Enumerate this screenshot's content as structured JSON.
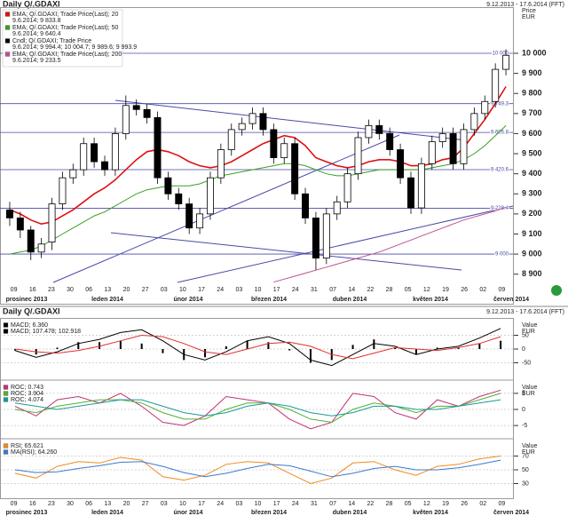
{
  "header": {
    "title": "Daily Q/.GDAXI",
    "range": "9.12.2013 - 17.6.2014 (FFT)"
  },
  "chart_data": [
    {
      "type": "candlestick",
      "axis_label": "Price",
      "unit": "EUR",
      "ylim": [
        8850,
        10230
      ],
      "yticks": [
        {
          "value": 8900,
          "label": "8 900"
        },
        {
          "value": 9000,
          "label": "9 000"
        },
        {
          "value": 9100,
          "label": "9 100"
        },
        {
          "value": 9200,
          "label": "9 200"
        },
        {
          "value": 9300,
          "label": "9 300"
        },
        {
          "value": 9400,
          "label": "9 400"
        },
        {
          "value": 9500,
          "label": "9 500"
        },
        {
          "value": 9600,
          "label": "9 600"
        },
        {
          "value": 9700,
          "label": "9 700"
        },
        {
          "value": 9800,
          "label": "9 800"
        },
        {
          "value": 9900,
          "label": "9 900"
        },
        {
          "value": 10000,
          "label": "10 000"
        }
      ],
      "levels": [
        {
          "value": 10000,
          "label": "10 000"
        },
        {
          "value": 9749.3,
          "label": "9 749.3"
        },
        {
          "value": 9605.8,
          "label": "9 605.8"
        },
        {
          "value": 9420.6,
          "label": "9 420.6"
        },
        {
          "value": 9228.4,
          "label": "9 228.4"
        },
        {
          "value": 9000,
          "label": "9 000"
        }
      ],
      "level_color": "#4a4aa8",
      "x_labels": [
        "09",
        "16",
        "23",
        "30",
        "06",
        "13",
        "20",
        "27",
        "03",
        "10",
        "17",
        "24",
        "03",
        "10",
        "17",
        "24",
        "31",
        "07",
        "14",
        "22",
        "28",
        "05",
        "12",
        "19",
        "26",
        "02",
        "09"
      ],
      "months": [
        "prosinec 2013",
        "leden 2014",
        "únor 2014",
        "březen 2014",
        "duben 2014",
        "květen 2014",
        "červen 2014"
      ],
      "candles": {
        "name": "Cndl; Q/.GDAXI; Trade Price",
        "detail": "9.6.2014; 9 994.4; 10 004.7; 9 989.6; 9 993.9",
        "color": "#000000",
        "open": [
          9220,
          9180,
          9120,
          9010,
          9060,
          9250,
          9380,
          9420,
          9550,
          9460,
          9420,
          9600,
          9740,
          9720,
          9680,
          9380,
          9300,
          9250,
          9130,
          9200,
          9380,
          9520,
          9620,
          9650,
          9700,
          9620,
          9480,
          9550,
          9300,
          9180,
          8980,
          9200,
          9260,
          9400,
          9580,
          9640,
          9600,
          9520,
          9380,
          9230,
          9450,
          9560,
          9600,
          9450,
          9620,
          9700,
          9760,
          9920
        ],
        "high": [
          9260,
          9210,
          9140,
          9080,
          9280,
          9410,
          9450,
          9580,
          9580,
          9490,
          9630,
          9790,
          9770,
          9750,
          9710,
          9410,
          9330,
          9280,
          9230,
          9410,
          9550,
          9650,
          9680,
          9730,
          9730,
          9650,
          9580,
          9580,
          9330,
          9210,
          9230,
          9290,
          9430,
          9610,
          9670,
          9670,
          9630,
          9550,
          9410,
          9480,
          9590,
          9630,
          9630,
          9650,
          9730,
          9790,
          9950,
          10020
        ],
        "low": [
          9140,
          9080,
          8970,
          8980,
          9020,
          9220,
          9350,
          9390,
          9430,
          9390,
          9390,
          9570,
          9690,
          9650,
          9350,
          9270,
          9220,
          9100,
          9100,
          9170,
          9350,
          9490,
          9590,
          9620,
          9590,
          9450,
          9450,
          9270,
          9150,
          8920,
          8950,
          9170,
          9230,
          9370,
          9550,
          9570,
          9490,
          9350,
          9200,
          9200,
          9420,
          9530,
          9420,
          9420,
          9590,
          9670,
          9730,
          9890
        ],
        "close": [
          9180,
          9120,
          9010,
          9050,
          9250,
          9380,
          9420,
          9550,
          9460,
          9420,
          9600,
          9740,
          9720,
          9680,
          9380,
          9300,
          9250,
          9130,
          9200,
          9380,
          9520,
          9620,
          9650,
          9700,
          9620,
          9480,
          9550,
          9300,
          9180,
          8980,
          9200,
          9260,
          9400,
          9580,
          9640,
          9600,
          9520,
          9380,
          9230,
          9450,
          9560,
          9600,
          9450,
          9620,
          9700,
          9760,
          9920,
          9990
        ]
      },
      "series": [
        {
          "name": "EMA; Q/.GDAXI; Trade Price(Last); 20",
          "detail": "9.6.2014; 9 833.8",
          "color": "#e01010",
          "values": [
            9220,
            9200,
            9170,
            9150,
            9160,
            9190,
            9220,
            9260,
            9300,
            9330,
            9370,
            9420,
            9470,
            9510,
            9520,
            9510,
            9490,
            9460,
            9440,
            9430,
            9440,
            9460,
            9490,
            9520,
            9550,
            9570,
            9590,
            9580,
            9540,
            9480,
            9460,
            9440,
            9430,
            9440,
            9460,
            9470,
            9470,
            9460,
            9440,
            9440,
            9450,
            9470,
            9480,
            9530,
            9600,
            9670,
            9750,
            9834
          ]
        },
        {
          "name": "EMA; Q/.GDAXI; Trade Price(Last); 50",
          "detail": "9.6.2014; 9 640.4",
          "color": "#3aa020",
          "values": [
            9000,
            9010,
            9020,
            9040,
            9070,
            9100,
            9130,
            9160,
            9190,
            9210,
            9240,
            9270,
            9300,
            9320,
            9330,
            9340,
            9340,
            9340,
            9350,
            9370,
            9390,
            9400,
            9410,
            9420,
            9430,
            9440,
            9450,
            9450,
            9440,
            9420,
            9400,
            9390,
            9390,
            9400,
            9410,
            9420,
            9420,
            9420,
            9420,
            9420,
            9430,
            9440,
            9450,
            9470,
            9500,
            9540,
            9590,
            9640
          ]
        },
        {
          "name": "EMA; Q/.GDAXI; Trade Price(Last); 200",
          "detail": "9.6.2014; 9 233.5",
          "color": "#c05090",
          "values": [
            null,
            null,
            null,
            null,
            null,
            null,
            null,
            null,
            null,
            null,
            null,
            null,
            null,
            null,
            null,
            null,
            null,
            null,
            null,
            null,
            null,
            null,
            null,
            null,
            null,
            8860,
            8875,
            8890,
            8905,
            8920,
            8935,
            8950,
            8965,
            8980,
            8995,
            9010,
            9030,
            9050,
            9070,
            9090,
            9110,
            9130,
            9150,
            9170,
            9185,
            9200,
            9215,
            9233.5
          ]
        }
      ]
    },
    {
      "type": "macd",
      "axis_label": "Value",
      "unit": "EUR",
      "ylim": [
        -100,
        100
      ],
      "yticks": [
        50,
        0,
        -50
      ],
      "grid": true,
      "series": [
        {
          "name": "MACD; 6.360",
          "color": "#000000",
          "style": "histogram",
          "values": [
            -5,
            -20,
            5,
            25,
            25,
            30,
            20,
            -15,
            -40,
            -30,
            10,
            30,
            25,
            -5,
            -50,
            -40,
            15,
            35,
            5,
            -20,
            5,
            5,
            20,
            30
          ]
        },
        {
          "name": "MACD; 107.478; 102.918",
          "color": "#000000",
          "values": [
            -5,
            -30,
            -10,
            20,
            35,
            60,
            70,
            30,
            -20,
            -40,
            -10,
            30,
            45,
            20,
            -40,
            -60,
            -20,
            20,
            10,
            -20,
            0,
            10,
            40,
            75
          ]
        },
        {
          "color": "#e03030",
          "values": [
            0,
            -10,
            -15,
            -5,
            10,
            30,
            50,
            45,
            20,
            -10,
            -20,
            0,
            20,
            25,
            10,
            -20,
            -35,
            -15,
            5,
            0,
            -5,
            5,
            20,
            45
          ]
        }
      ]
    },
    {
      "type": "line",
      "axis_label": "Value",
      "unit": "EUR",
      "ylim": [
        -8,
        8
      ],
      "yticks": [
        5,
        0,
        -5
      ],
      "grid": true,
      "series": [
        {
          "name": "ROC; 0.743",
          "color": "#c0307a",
          "values": [
            1,
            -2,
            3,
            4,
            2,
            5,
            1,
            -4,
            -5,
            -2,
            4,
            3,
            2,
            -3,
            -6,
            -4,
            5,
            4,
            -1,
            -3,
            3,
            1,
            4,
            6
          ]
        },
        {
          "name": "ROC; 3.904",
          "color": "#50b030",
          "values": [
            0,
            -1,
            1,
            2,
            3,
            3,
            2,
            -1,
            -3,
            -3,
            0,
            2,
            2,
            0,
            -3,
            -4,
            0,
            2,
            1,
            -1,
            1,
            1,
            3,
            5
          ]
        },
        {
          "name": "ROC; 4.074",
          "color": "#1a9a9a",
          "values": [
            2,
            1,
            0,
            1,
            2,
            3,
            3,
            1,
            -1,
            -2,
            -1,
            1,
            2,
            1,
            -1,
            -2,
            -1,
            1,
            1,
            0,
            0,
            1,
            2,
            3
          ]
        }
      ]
    },
    {
      "type": "line",
      "axis_label": "Value",
      "unit": "EUR",
      "ylim": [
        10,
        90
      ],
      "yticks": [
        70,
        50,
        30
      ],
      "grid": true,
      "series": [
        {
          "name": "RSI; 65.621",
          "color": "#f08a20",
          "values": [
            45,
            38,
            55,
            62,
            60,
            68,
            64,
            40,
            35,
            42,
            58,
            62,
            60,
            45,
            30,
            38,
            60,
            62,
            50,
            42,
            55,
            58,
            66,
            70
          ]
        },
        {
          "name": "MA(RSI); 64.260",
          "color": "#3a7ad0",
          "values": [
            50,
            46,
            47,
            52,
            56,
            61,
            62,
            55,
            46,
            40,
            45,
            52,
            58,
            56,
            48,
            40,
            45,
            52,
            55,
            50,
            50,
            53,
            58,
            64
          ]
        }
      ]
    }
  ]
}
